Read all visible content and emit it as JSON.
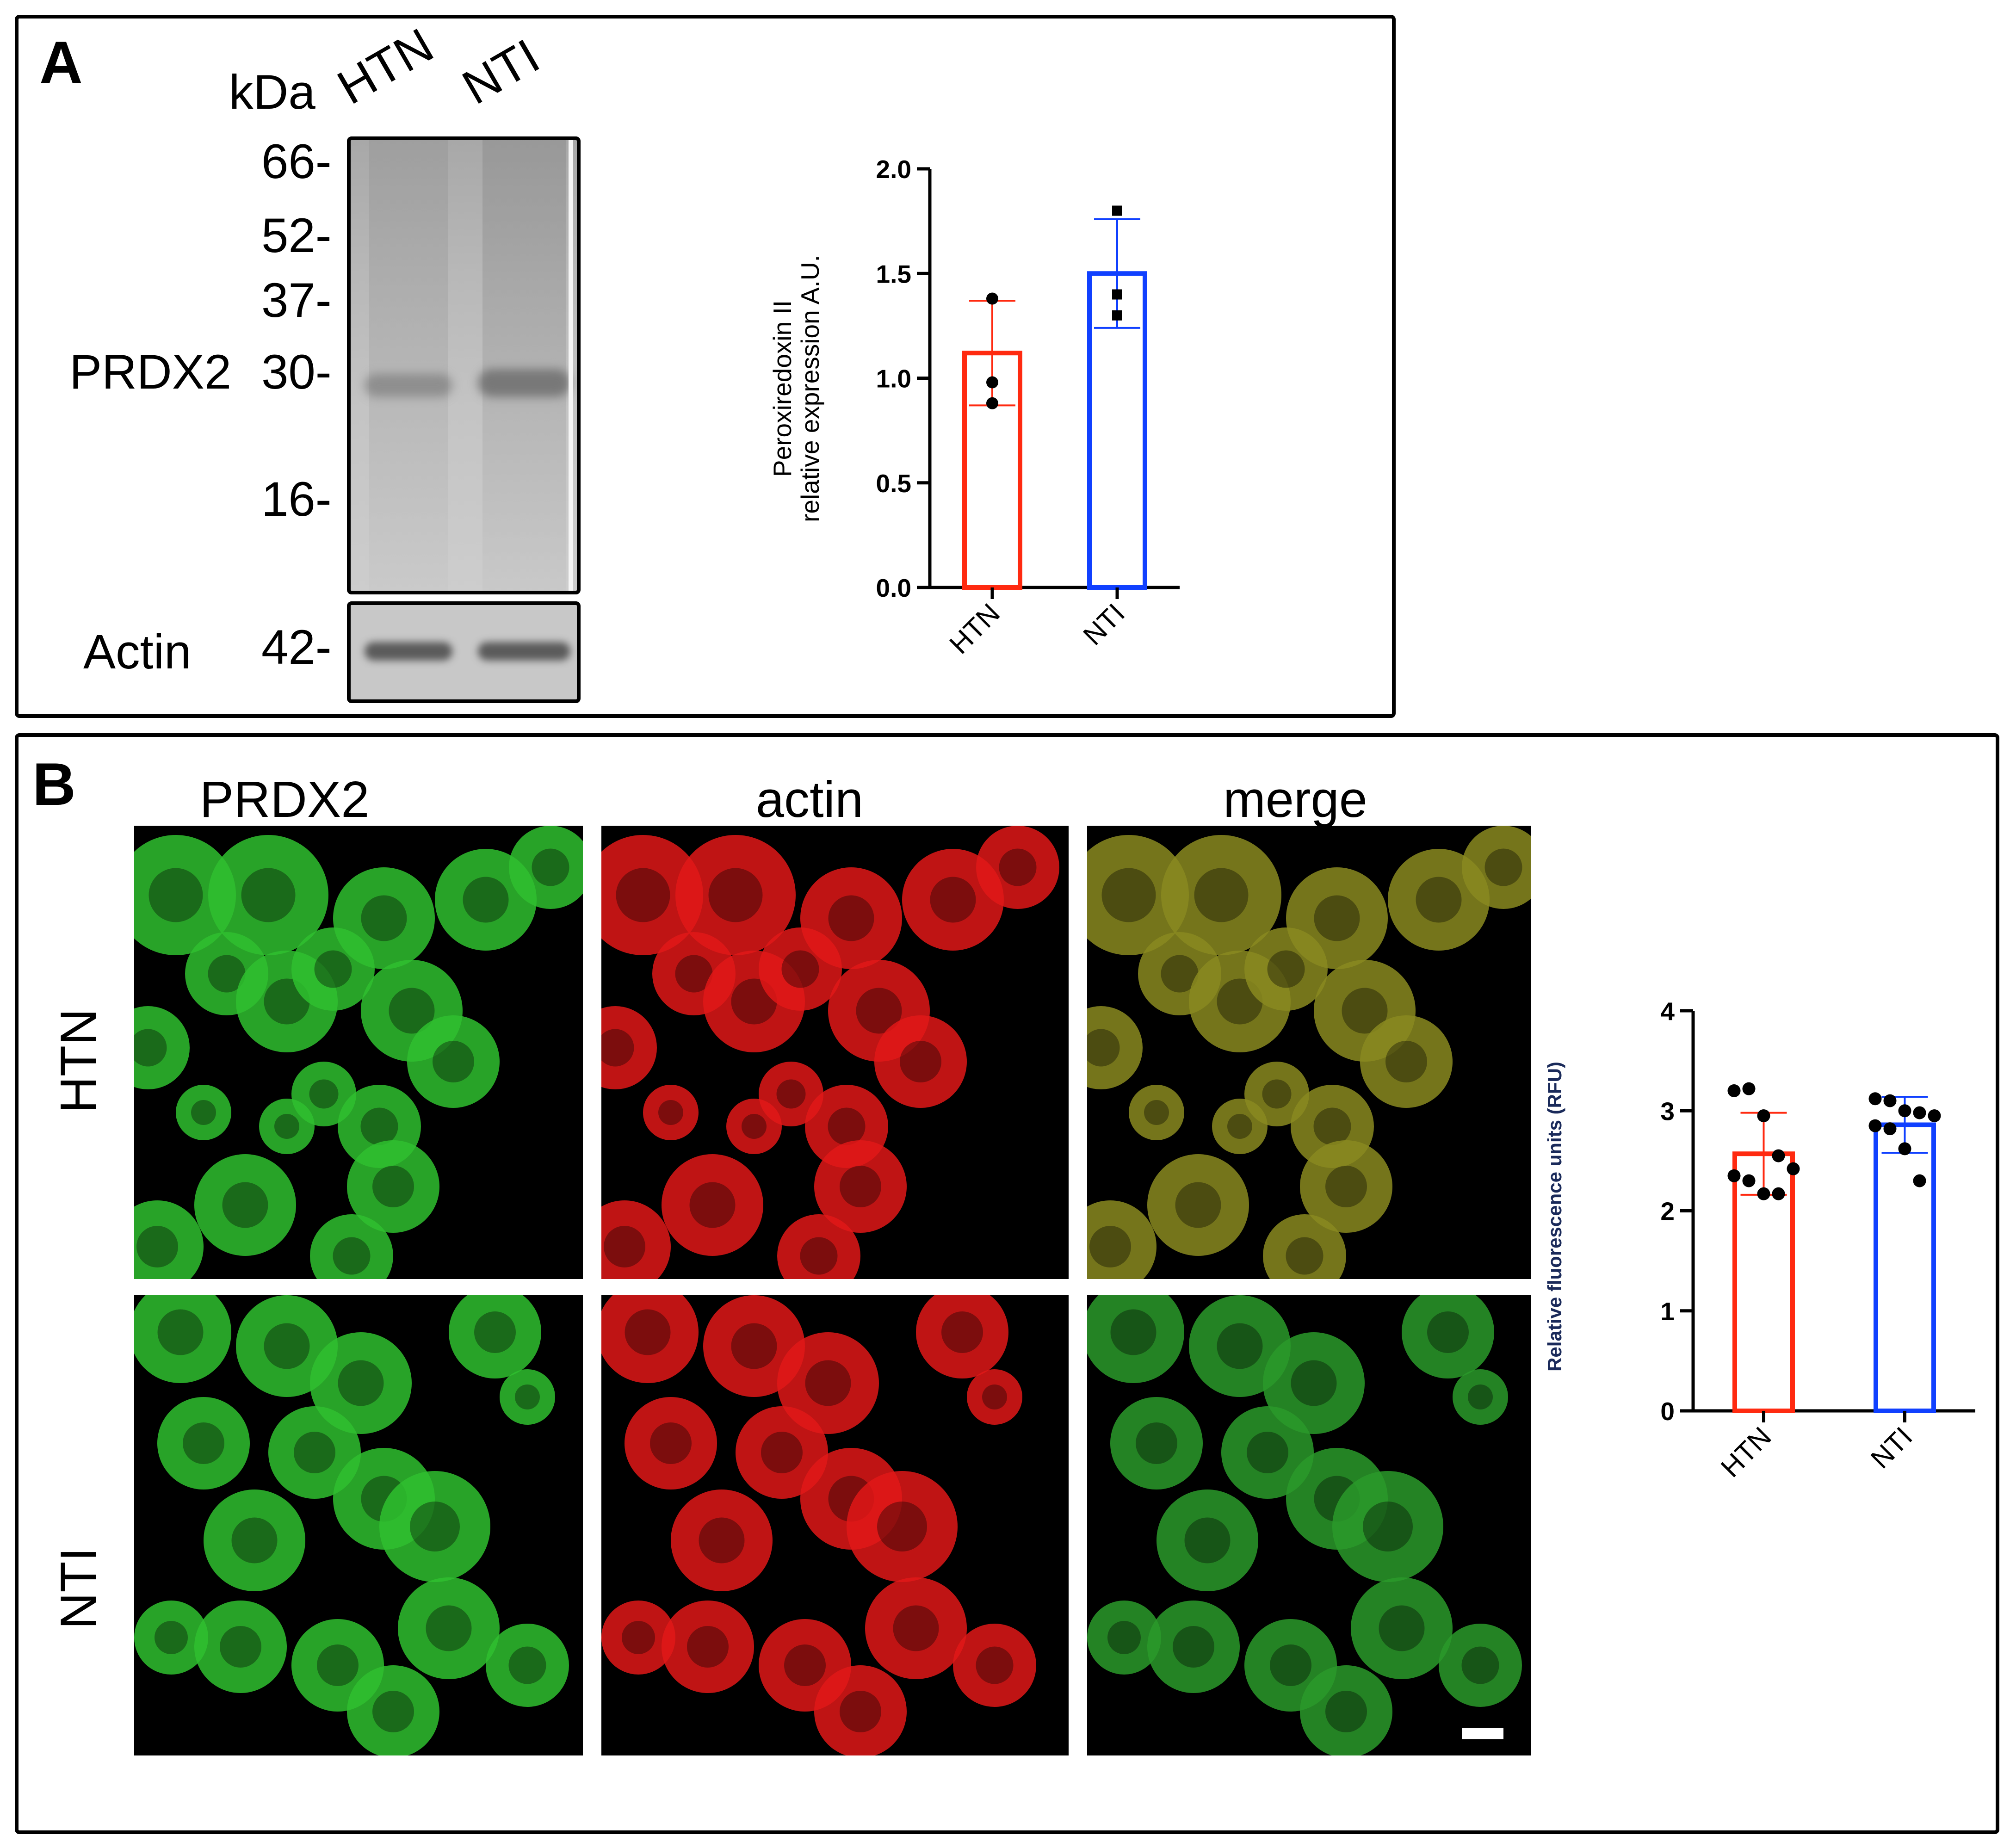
{
  "panelA": {
    "letter": "A",
    "kda": "kDa",
    "lanes": [
      "HTN",
      "NTI"
    ],
    "markers": [
      "66-",
      "52-",
      "37-",
      "30-",
      "16-"
    ],
    "prdx2_label": "PRDX2",
    "actin_label": "Actin",
    "actin_marker": "42-"
  },
  "panelB": {
    "letter": "B",
    "columns": [
      "PRDX2",
      "actin",
      "merge"
    ],
    "rows": [
      "HTN",
      "NTI"
    ]
  },
  "chart_data": [
    {
      "type": "bar",
      "categories": [
        "HTN",
        "NTI"
      ],
      "values": [
        1.12,
        1.5
      ],
      "errors": [
        0.25,
        0.26
      ],
      "points": [
        [
          1.38,
          0.98,
          0.88
        ],
        [
          1.8,
          1.4,
          1.3
        ]
      ],
      "colors": [
        "#ff2a10",
        "#1040ff"
      ],
      "ylabel_lines": [
        "Peroxiredoxin II",
        "relative expression A.U."
      ],
      "ylim": [
        0,
        2.0
      ],
      "yticks": [
        "0.0",
        "0.5",
        "1.0",
        "1.5",
        "2.0"
      ]
    },
    {
      "type": "bar",
      "categories": [
        "HTN",
        "NTI"
      ],
      "values": [
        2.57,
        2.86
      ],
      "errors": [
        0.41,
        0.28
      ],
      "points": [
        [
          3.2,
          3.22,
          2.95,
          2.55,
          2.42,
          2.35,
          2.3,
          2.17,
          2.17
        ],
        [
          3.12,
          3.1,
          3.0,
          2.98,
          2.95,
          2.85,
          2.82,
          2.62,
          2.3
        ]
      ],
      "colors": [
        "#ff2a10",
        "#1040ff"
      ],
      "ylabel": "Relative fluorescence units (RFU)",
      "ylim": [
        0,
        4
      ],
      "yticks": [
        "0",
        "1",
        "2",
        "3",
        "4"
      ]
    }
  ]
}
